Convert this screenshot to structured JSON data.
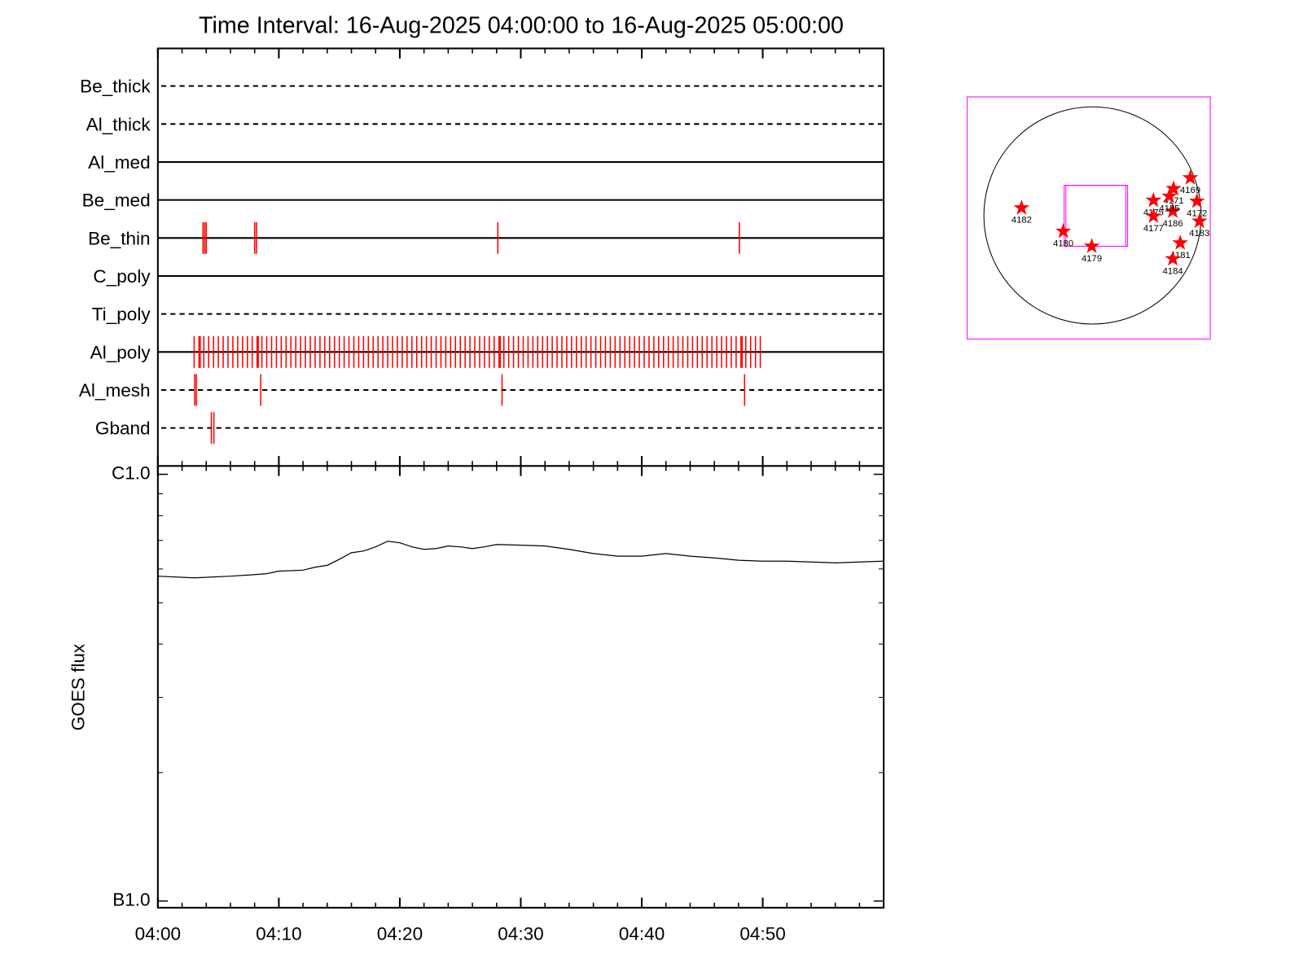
{
  "chart_data": [
    {
      "type": "timeline",
      "title": "Time Interval: 16-Aug-2025 04:00:00 to 16-Aug-2025 05:00:00",
      "categories": [
        "Be_thick",
        "Al_thick",
        "Al_med",
        "Be_med",
        "Be_thin",
        "C_poly",
        "Ti_poly",
        "Al_poly",
        "Al_mesh",
        "Gband"
      ],
      "line_styles": [
        "dashed",
        "dashed",
        "solid",
        "solid",
        "solid",
        "solid",
        "dashed",
        "solid",
        "dashed",
        "dashed"
      ],
      "color": "#ff0000",
      "events": [
        [],
        [],
        [],
        [],
        [
          3.73,
          3.87,
          4.0,
          8.0,
          8.15,
          28.1,
          48.07
        ],
        [],
        [],
        [
          3.0,
          3.4,
          3.5,
          3.8,
          4.2,
          4.6,
          5.0,
          5.4,
          5.8,
          6.2,
          6.6,
          7.0,
          7.4,
          7.8,
          8.2,
          8.3,
          8.6,
          9.0,
          9.4,
          9.8,
          10.2,
          10.6,
          11.0,
          11.4,
          11.8,
          12.2,
          12.6,
          13.0,
          13.4,
          13.8,
          14.2,
          14.6,
          15.0,
          15.4,
          15.8,
          16.2,
          16.6,
          17.0,
          17.4,
          17.8,
          18.2,
          18.6,
          19.0,
          19.4,
          19.8,
          20.2,
          20.6,
          21.0,
          21.4,
          21.8,
          22.2,
          22.6,
          23.0,
          23.4,
          23.8,
          24.2,
          24.6,
          25.0,
          25.4,
          25.8,
          26.2,
          26.6,
          27.0,
          27.4,
          27.8,
          28.2,
          28.3,
          28.6,
          29.0,
          29.4,
          29.8,
          30.2,
          30.6,
          31.0,
          31.4,
          31.8,
          32.2,
          32.6,
          33.0,
          33.4,
          33.8,
          34.2,
          34.6,
          35.0,
          35.4,
          35.8,
          36.2,
          36.6,
          37.0,
          37.4,
          37.8,
          38.2,
          38.6,
          39.0,
          39.4,
          39.8,
          40.2,
          40.6,
          41.0,
          41.4,
          41.8,
          42.2,
          42.6,
          43.0,
          43.4,
          43.8,
          44.2,
          44.6,
          45.0,
          45.4,
          45.8,
          46.2,
          46.6,
          47.0,
          47.4,
          47.8,
          48.2,
          48.3,
          48.6,
          49.0,
          49.4,
          49.8
        ],
        [
          3.04,
          3.18,
          8.5,
          28.45,
          48.5
        ],
        [
          4.42,
          4.63
        ]
      ]
    },
    {
      "type": "line",
      "y_label": "GOES flux",
      "log_scale": true,
      "color": "#000000",
      "x": [
        0,
        3,
        6,
        8,
        9,
        10,
        12,
        13,
        14,
        15,
        16,
        17,
        18,
        19,
        20,
        21,
        22,
        23,
        24,
        25,
        26,
        27,
        28,
        30,
        32,
        34,
        36,
        38,
        40,
        42,
        44,
        46,
        48,
        50,
        52,
        54,
        56,
        58,
        60
      ],
      "values": [
        5.77e-07,
        5.72e-07,
        5.77e-07,
        5.82e-07,
        5.85e-07,
        5.93e-07,
        5.96e-07,
        6.06e-07,
        6.12e-07,
        6.32e-07,
        6.55e-07,
        6.61e-07,
        6.76e-07,
        6.97e-07,
        6.91e-07,
        6.76e-07,
        6.67e-07,
        6.7e-07,
        6.79e-07,
        6.76e-07,
        6.7e-07,
        6.76e-07,
        6.85e-07,
        6.82e-07,
        6.79e-07,
        6.67e-07,
        6.52e-07,
        6.43e-07,
        6.43e-07,
        6.52e-07,
        6.43e-07,
        6.37e-07,
        6.29e-07,
        6.26e-07,
        6.26e-07,
        6.23e-07,
        6.2e-07,
        6.23e-07,
        6.26e-07
      ],
      "xlim": [
        0,
        60
      ],
      "xticks": [
        {
          "value": 0,
          "label": "04:00"
        },
        {
          "value": 10,
          "label": "04:10"
        },
        {
          "value": 20,
          "label": "04:20"
        },
        {
          "value": 30,
          "label": "04:30"
        },
        {
          "value": 40,
          "label": "04:40"
        },
        {
          "value": 50,
          "label": "04:50"
        }
      ],
      "minor_xticks": [
        2,
        4,
        6,
        8,
        12,
        14,
        16,
        18,
        22,
        24,
        26,
        28,
        32,
        34,
        36,
        38,
        42,
        44,
        46,
        48,
        52,
        54,
        56,
        58
      ],
      "ylim": [
        1e-07,
        1e-06
      ],
      "yticks": [
        {
          "value": 1e-06,
          "label": "C1.0"
        },
        {
          "value": 1e-07,
          "label": "B1.0"
        }
      ],
      "minor_yticks": [
        2e-07,
        3e-07,
        4e-07,
        5e-07,
        6e-07,
        7e-07,
        8e-07,
        9e-07
      ]
    },
    {
      "type": "map",
      "color": "#ff0000",
      "frame_color": "#ff00ff",
      "xlim": [
        -1096,
        1030
      ],
      "ylim": [
        -1082,
        1038
      ],
      "radius": 950,
      "fov_x": [
        -248,
        292
      ],
      "fov_y": [
        -270,
        263
      ],
      "points": [
        {
          "label": "4182",
          "x": -621,
          "y": 66
        },
        {
          "label": "4180",
          "x": -256,
          "y": -139
        },
        {
          "label": "4179",
          "x": -7,
          "y": -270
        },
        {
          "label": "4175",
          "x": 533,
          "y": 132
        },
        {
          "label": "4177",
          "x": 533,
          "y": -7
        },
        {
          "label": "4186",
          "x": 702,
          "y": 37
        },
        {
          "label": "4171",
          "x": 709,
          "y": 234
        },
        {
          "label": "4185",
          "x": 672,
          "y": 168
        },
        {
          "label": "4169",
          "x": 855,
          "y": 329
        },
        {
          "label": "4172",
          "x": 913,
          "y": 124
        },
        {
          "label": "4183",
          "x": 935,
          "y": -51
        },
        {
          "label": "4181",
          "x": 767,
          "y": -241
        },
        {
          "label": "4184",
          "x": 702,
          "y": -380
        }
      ]
    }
  ]
}
